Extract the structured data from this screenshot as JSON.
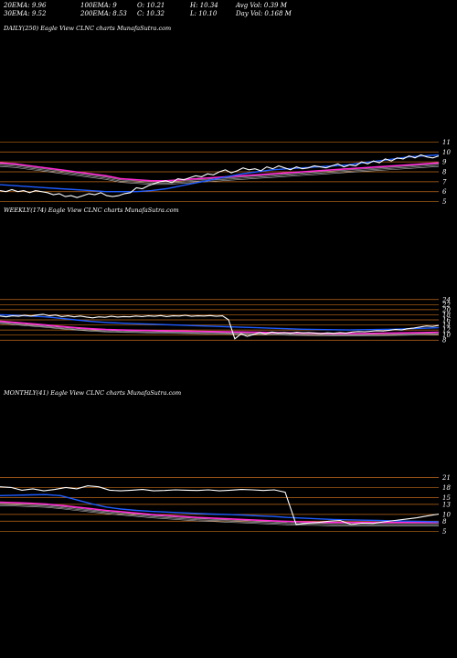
{
  "header": {
    "ema20": "20EMA: 9.96",
    "ema30": "30EMA: 9.52",
    "ema100": "100EMA: 9",
    "ema200": "200EMA: 8.53",
    "open": "O: 10.21",
    "close": "C: 10.32",
    "high": "H: 10.34",
    "low": "L: 10.10",
    "avg_vol": "Avg Vol: 0.39  M",
    "day_vol": "Day Vol: 0.168  M"
  },
  "panels": [
    {
      "title": "DAILY(250) Eagle   View  CLNC charts MunafaSutra.com",
      "ticks": [
        "11",
        "10",
        "9",
        "8",
        "7",
        "6",
        "5"
      ]
    },
    {
      "title": "WEEKLY(174) Eagle   View  CLNC charts MunafaSutra.com",
      "ticks": [
        "24",
        "22",
        "20",
        "18",
        "16",
        "14",
        "12",
        "10",
        "8"
      ]
    },
    {
      "title": "MONTHLY(41) Eagle   View  CLNC charts MunafaSutra.com",
      "ticks": [
        "21",
        "18",
        "15",
        "13",
        "10",
        "8",
        "5"
      ]
    }
  ],
  "colors": {
    "background": "#000000",
    "price": "#ffffff",
    "ema_short": "#1e5cff",
    "ema_long": "#ff2ad4",
    "grid": "#c06a1a"
  },
  "chart_data": [
    {
      "type": "line",
      "timeframe": "daily",
      "bars": 250,
      "ticker": "CLNC",
      "ylim": [
        4.5,
        11.5
      ],
      "y_ticks": [
        11,
        10,
        9,
        8,
        7,
        6,
        5
      ],
      "price": [
        6.1,
        6.0,
        6.2,
        6.0,
        6.1,
        5.9,
        6.1,
        6.0,
        5.9,
        5.7,
        5.8,
        5.5,
        5.6,
        5.4,
        5.6,
        5.8,
        5.7,
        5.9,
        5.6,
        5.5,
        5.6,
        5.8,
        5.9,
        6.4,
        6.3,
        6.6,
        6.8,
        7.0,
        7.1,
        6.9,
        7.3,
        7.2,
        7.4,
        7.6,
        7.5,
        7.8,
        7.7,
        8.0,
        8.2,
        7.9,
        8.1,
        8.4,
        8.2,
        8.3,
        8.1,
        8.5,
        8.3,
        8.6,
        8.4,
        8.2,
        8.5,
        8.3,
        8.4,
        8.6,
        8.5,
        8.4,
        8.6,
        8.8,
        8.5,
        8.7,
        8.6,
        9.0,
        8.8,
        9.1,
        8.9,
        9.3,
        9.1,
        9.4,
        9.3,
        9.6,
        9.4,
        9.7,
        9.5,
        9.4,
        9.6
      ],
      "ema_short": [
        6.7,
        6.6,
        6.5,
        6.4,
        6.3,
        6.2,
        6.1,
        6.0,
        6.0,
        6.0,
        6.1,
        6.3,
        6.6,
        6.9,
        7.2,
        7.5,
        7.8,
        8.0,
        8.2,
        8.3,
        8.4,
        8.5,
        8.6,
        8.7,
        8.9,
        9.1,
        9.3,
        9.5,
        9.6,
        9.7
      ],
      "ema_long": [
        8.9,
        8.8,
        8.6,
        8.4,
        8.2,
        8.0,
        7.8,
        7.6,
        7.3,
        7.2,
        7.1,
        7.1,
        7.2,
        7.3,
        7.4,
        7.5,
        7.6,
        7.7,
        7.8,
        7.9,
        8.0,
        8.1,
        8.2,
        8.3,
        8.4,
        8.5,
        8.6,
        8.7,
        8.8,
        8.9
      ]
    },
    {
      "type": "line",
      "timeframe": "weekly",
      "bars": 174,
      "ticker": "CLNC",
      "ylim": [
        7,
        25
      ],
      "y_ticks": [
        24,
        22,
        20,
        18,
        16,
        14,
        12,
        10,
        8
      ],
      "price": [
        17.5,
        17.2,
        17.6,
        17.4,
        17.8,
        17.5,
        17.9,
        18.2,
        17.6,
        17.9,
        17.3,
        17.6,
        17.2,
        17.5,
        17.1,
        16.8,
        17.2,
        17.0,
        17.4,
        17.1,
        17.3,
        17.2,
        17.5,
        17.3,
        17.6,
        17.4,
        17.7,
        17.3,
        17.6,
        17.5,
        17.8,
        17.4,
        17.6,
        17.5,
        17.7,
        17.4,
        17.6,
        16.0,
        8.5,
        10.5,
        9.5,
        10.2,
        11.0,
        10.5,
        11.2,
        10.8,
        11.0,
        10.7,
        11.1,
        10.9,
        11.0,
        10.8,
        10.6,
        10.9,
        10.7,
        11.0,
        10.8,
        11.2,
        11.4,
        11.3,
        11.5,
        11.7,
        11.6,
        11.9,
        12.2,
        12.0,
        12.5,
        12.8,
        13.2,
        13.6,
        13.4,
        13.8
      ],
      "ema_short": [
        18.0,
        17.8,
        17.5,
        17.2,
        16.6,
        16.0,
        15.4,
        15.0,
        14.7,
        14.5,
        14.3,
        14.1,
        13.9,
        13.7,
        13.5,
        13.3,
        13.1,
        12.9,
        12.7,
        12.5,
        12.3,
        12.2,
        12.1,
        12.0,
        12.1,
        12.2,
        12.3,
        12.5,
        12.7,
        12.9
      ],
      "ema_long": [
        15.5,
        15.0,
        14.5,
        14.0,
        13.4,
        12.9,
        12.5,
        12.2,
        12.0,
        11.9,
        11.8,
        11.7,
        11.6,
        11.5,
        11.4,
        11.3,
        11.2,
        11.1,
        11.0,
        10.9,
        10.8,
        10.7,
        10.6,
        10.6,
        10.6,
        10.7,
        10.8,
        10.9,
        11.0,
        11.1
      ]
    },
    {
      "type": "line",
      "timeframe": "monthly",
      "bars": 41,
      "ticker": "CLNC",
      "ylim": [
        4,
        23
      ],
      "y_ticks": [
        21,
        18,
        15,
        13,
        10,
        8,
        5
      ],
      "price": [
        18.2,
        18.0,
        17.2,
        17.6,
        17.0,
        17.4,
        18.0,
        17.6,
        18.5,
        18.2,
        17.2,
        17.0,
        17.2,
        17.4,
        17.0,
        17.1,
        17.3,
        17.2,
        17.1,
        17.3,
        17.0,
        17.2,
        17.4,
        17.3,
        17.1,
        17.3,
        16.6,
        7.0,
        7.4,
        7.6,
        8.0,
        8.2,
        7.0,
        7.4,
        7.3,
        7.8,
        8.2,
        8.6,
        9.0,
        9.6,
        10.1
      ],
      "ema_short": [
        15.6,
        15.7,
        15.8,
        15.9,
        15.6,
        14.4,
        13.2,
        12.2,
        11.6,
        11.2,
        10.9,
        10.7,
        10.5,
        10.3,
        10.1,
        10.0,
        9.8,
        9.6,
        9.4,
        9.1,
        8.9,
        8.7,
        8.5,
        8.4,
        8.3,
        8.2,
        8.1,
        8.0,
        7.9,
        7.8
      ],
      "ema_long": [
        13.6,
        13.5,
        13.3,
        13.1,
        12.7,
        12.2,
        11.7,
        11.2,
        10.8,
        10.4,
        10.0,
        9.7,
        9.4,
        9.1,
        8.9,
        8.7,
        8.5,
        8.3,
        8.1,
        7.9,
        7.8,
        7.7,
        7.6,
        7.6,
        7.6,
        7.6,
        7.6,
        7.6,
        7.6,
        7.6
      ]
    }
  ]
}
